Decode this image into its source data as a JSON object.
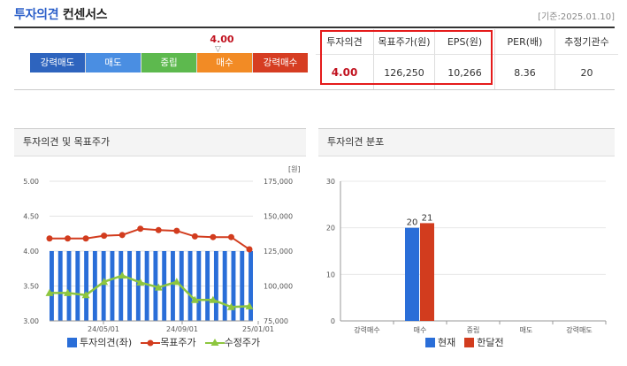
{
  "header": {
    "title_accent": "투자의견",
    "title_rest": "컨센서스",
    "date": "[기준:2025.01.10]"
  },
  "scale": {
    "current_value": "4.00",
    "marker": "▽",
    "segments": [
      {
        "label": "강력매도",
        "color": "#2e64be"
      },
      {
        "label": "매도",
        "color": "#4a8ee2"
      },
      {
        "label": "중립",
        "color": "#5db94e"
      },
      {
        "label": "매수",
        "color": "#f28b25"
      },
      {
        "label": "강력매수",
        "color": "#d63d22"
      }
    ]
  },
  "consensus_table": {
    "headers": [
      "투자의견",
      "목표주가(원)",
      "EPS(원)",
      "PER(배)",
      "추정기관수"
    ],
    "values": [
      "4.00",
      "126,250",
      "10,266",
      "8.36",
      "20"
    ]
  },
  "left_panel": {
    "title": "투자의견 및 목표주가",
    "legend": [
      {
        "label": "투자의견(좌)",
        "color": "#2a6ed8"
      },
      {
        "label": "목표주가",
        "color": "#d23c1e"
      },
      {
        "label": "수정주가",
        "color": "#8dc63f"
      }
    ]
  },
  "right_panel": {
    "title": "투자의견 분포",
    "legend": [
      {
        "label": "현재",
        "color": "#2a6ed8"
      },
      {
        "label": "한달전",
        "color": "#d23c1e"
      }
    ]
  },
  "chart_data": [
    {
      "type": "bar+line",
      "title": "투자의견 및 목표주가",
      "x_ticks": [
        "24/05/01",
        "24/09/01",
        "25/01/01"
      ],
      "y_left": {
        "ticks": [
          "5.00",
          "4.50",
          "4.00",
          "3.50",
          "3.00"
        ],
        "ylim": [
          3.0,
          5.0
        ]
      },
      "y_right": {
        "unit": "[원]",
        "ticks": [
          "175,000",
          "150,000",
          "125,000",
          "100,000",
          "75,000"
        ],
        "ylim": [
          75000,
          175000
        ]
      },
      "series": [
        {
          "name": "투자의견(좌)",
          "type": "bar",
          "values": [
            4.0,
            4.0,
            4.0,
            4.0,
            4.0,
            4.0,
            4.0,
            4.0,
            4.0,
            4.0,
            4.0,
            4.0,
            4.0,
            4.0,
            4.0,
            4.0,
            4.0,
            4.0,
            4.0,
            4.0,
            4.0,
            4.0,
            4.0,
            4.0,
            4.0,
            4.0,
            4.0,
            4.0,
            4.0,
            4.0,
            4.0,
            4.0,
            4.0,
            4.0,
            4.0,
            4.0,
            4.0,
            4.0,
            4.0,
            4.0,
            4.0,
            4.0,
            4.0,
            4.0,
            4.0,
            4.0,
            4.0
          ]
        },
        {
          "name": "목표주가",
          "type": "line",
          "values": [
            134000,
            134000,
            134000,
            136000,
            136500,
            141000,
            140000,
            139500,
            135500,
            135000,
            135000,
            126250
          ]
        },
        {
          "name": "수정주가",
          "type": "line",
          "values": [
            95000,
            95000,
            93500,
            103000,
            107500,
            102500,
            99000,
            103000,
            90000,
            90000,
            85000,
            85500
          ]
        }
      ]
    },
    {
      "type": "bar",
      "title": "투자의견 분포",
      "categories": [
        "강력매수",
        "매수",
        "중립",
        "매도",
        "강력매도"
      ],
      "ylim": [
        0,
        30
      ],
      "y_ticks": [
        "30",
        "20",
        "10",
        "0"
      ],
      "series": [
        {
          "name": "현재",
          "values": [
            0,
            20,
            0,
            0,
            0
          ]
        },
        {
          "name": "한달전",
          "values": [
            0,
            21,
            0,
            0,
            0
          ]
        }
      ]
    }
  ]
}
